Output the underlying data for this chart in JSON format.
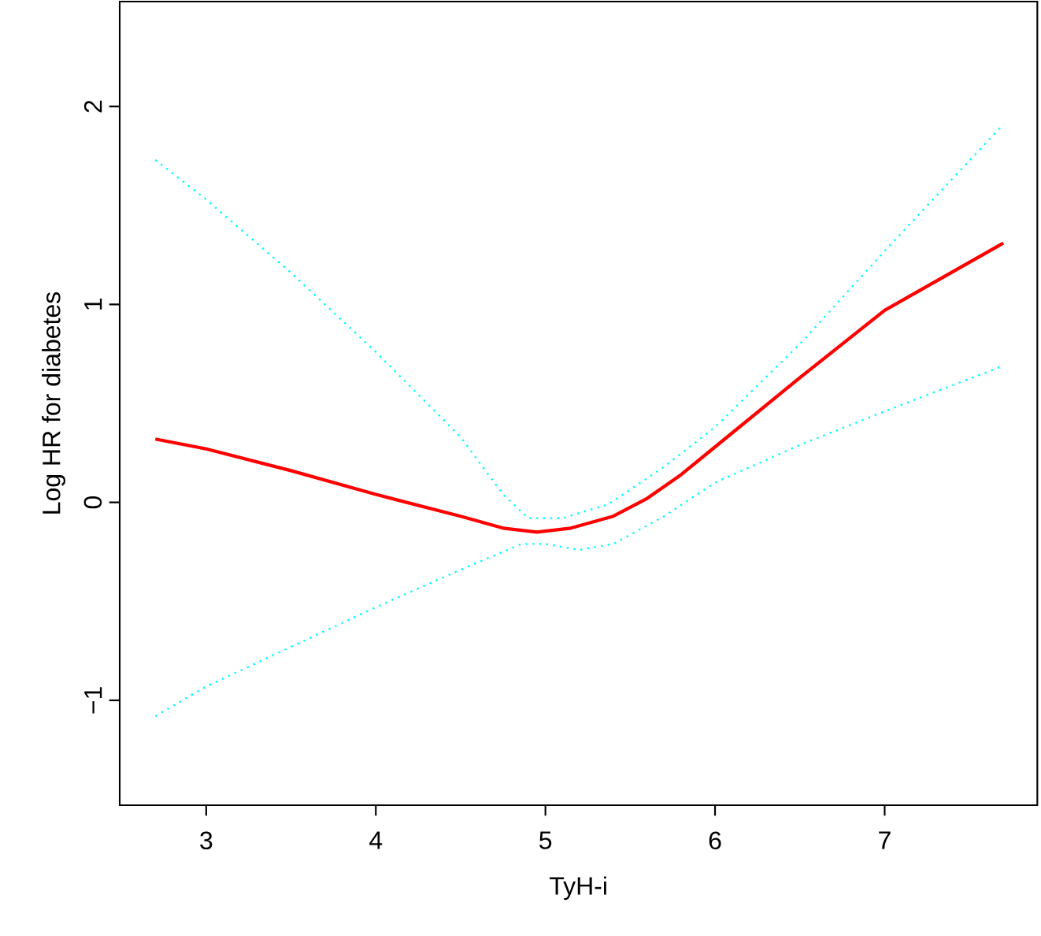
{
  "chart_data": {
    "type": "line",
    "xlabel": "TyH-i",
    "ylabel": "Log HR for diabetes",
    "xlim": [
      2.49,
      7.9
    ],
    "ylim": [
      -1.53,
      2.53
    ],
    "xticks": [
      3,
      4,
      5,
      6,
      7
    ],
    "yticks": [
      {
        "value": -1,
        "label": "−1"
      },
      0,
      1,
      2
    ],
    "series": [
      {
        "color": "#ff0000",
        "line_style": "solid",
        "x": [
          2.7,
          3.0,
          3.5,
          4.0,
          4.5,
          4.75,
          4.95,
          5.15,
          5.4,
          5.6,
          5.8,
          6.0,
          6.5,
          7.0,
          7.7
        ],
        "values": [
          0.32,
          0.27,
          0.16,
          0.04,
          -0.07,
          -0.13,
          -0.15,
          -0.13,
          -0.07,
          0.02,
          0.14,
          0.28,
          0.63,
          0.97,
          1.31
        ]
      },
      {
        "color": "#00ffff",
        "line_style": "dotted",
        "x": [
          2.7,
          3.0,
          3.5,
          4.0,
          4.5,
          4.75,
          4.9,
          5.1,
          5.37,
          5.7,
          6.0,
          6.5,
          7.0,
          7.7
        ],
        "values": [
          1.73,
          1.53,
          1.16,
          0.76,
          0.33,
          0.04,
          -0.08,
          -0.08,
          -0.01,
          0.18,
          0.38,
          0.8,
          1.27,
          1.91
        ]
      },
      {
        "color": "#00ffff",
        "line_style": "dotted",
        "x": [
          2.7,
          3.0,
          3.5,
          4.0,
          4.5,
          4.86,
          5.0,
          5.2,
          5.4,
          5.7,
          6.0,
          6.5,
          7.0,
          7.7
        ],
        "values": [
          -1.08,
          -0.93,
          -0.73,
          -0.53,
          -0.34,
          -0.21,
          -0.21,
          -0.24,
          -0.21,
          -0.07,
          0.1,
          0.29,
          0.46,
          0.69
        ]
      }
    ]
  }
}
